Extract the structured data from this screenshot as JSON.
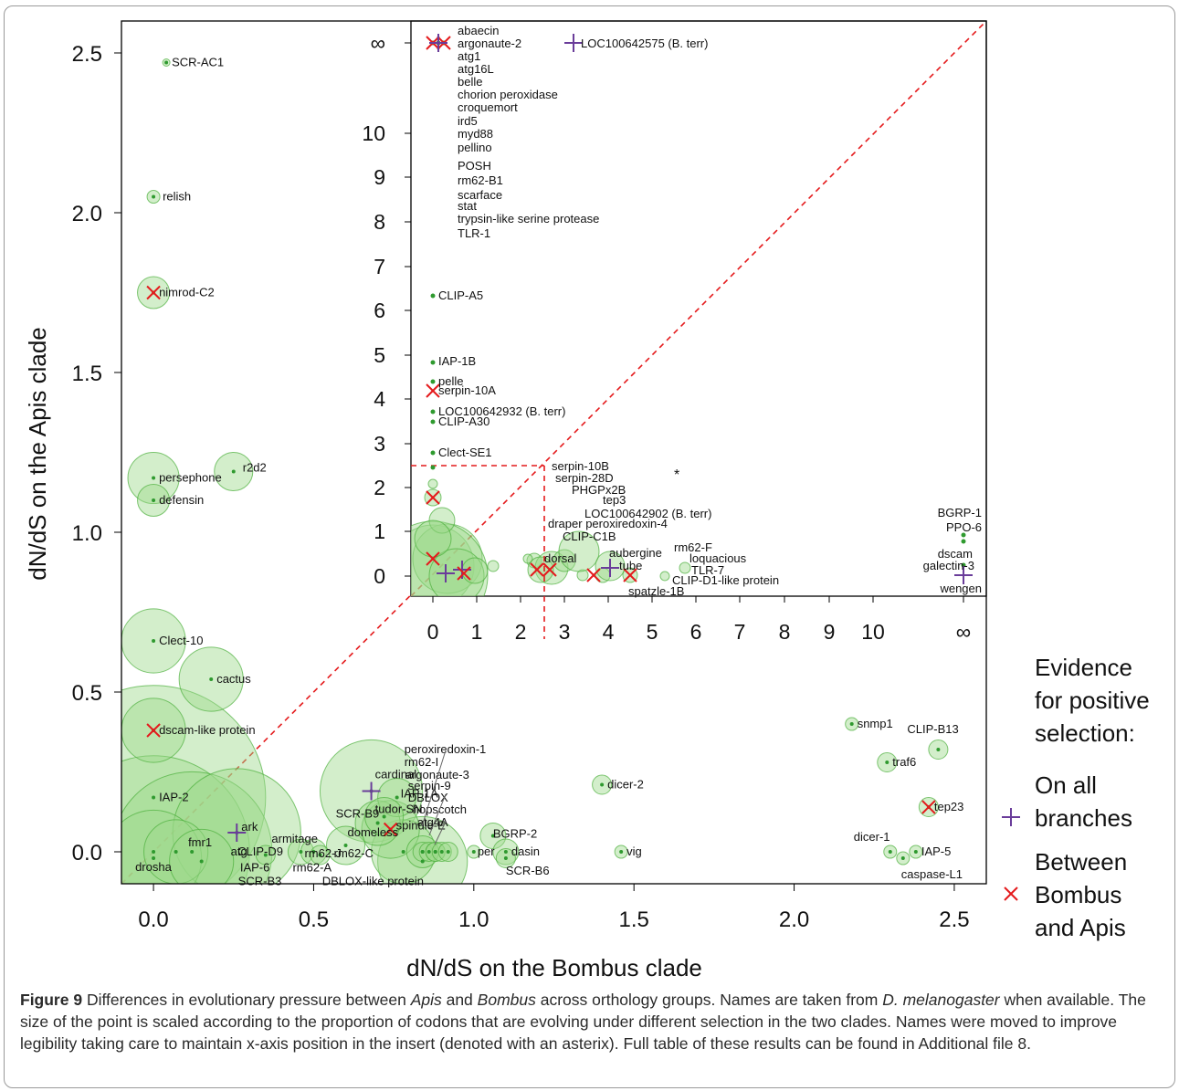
{
  "chart_data": {
    "type": "scatter",
    "xlabel": "dN/dS on the  Bombus clade",
    "ylabel": "dN/dS on the Apis clade",
    "xlim": [
      -0.1,
      2.6
    ],
    "ylim": [
      -0.1,
      2.6
    ],
    "xticks": [
      "0.0",
      "0.5",
      "1.0",
      "1.5",
      "2.0",
      "2.5"
    ],
    "yticks": [
      "0.0",
      "0.5",
      "1.0",
      "1.5",
      "2.0",
      "2.5"
    ],
    "diagonal": "y = x (dashed red)",
    "colors": {
      "circle_fill": "#9ed98c",
      "circle_edge": "#4caf3c",
      "dot": "#2f9a2f",
      "all_branches": "#6a3d9a",
      "between": "#e41a1c"
    },
    "legend": {
      "title": [
        "Evidence",
        "for positive",
        "selection:"
      ],
      "all_branches": [
        "On all",
        "branches"
      ],
      "between": [
        "Between",
        "Bombus",
        "and Apis"
      ]
    },
    "points": [
      {
        "label": "SCR-AC1",
        "x": 0.04,
        "y": 2.47,
        "r": 0.01
      },
      {
        "label": "relish",
        "x": 0.0,
        "y": 2.05,
        "r": 0.02
      },
      {
        "label": "nimrod-C2",
        "x": 0.0,
        "y": 1.75,
        "r": 0.05,
        "marker": "between"
      },
      {
        "label": "persephone",
        "x": 0.0,
        "y": 1.17,
        "r": 0.08
      },
      {
        "label": "r2d2",
        "x": 0.25,
        "y": 1.19,
        "r": 0.06
      },
      {
        "label": "defensin",
        "x": 0.0,
        "y": 1.1,
        "r": 0.05
      },
      {
        "label": "Clect-10",
        "x": 0.0,
        "y": 0.66,
        "r": 0.1
      },
      {
        "label": "cactus",
        "x": 0.18,
        "y": 0.54,
        "r": 0.1
      },
      {
        "label": "dscam-like protein",
        "x": 0.0,
        "y": 0.38,
        "r": 0.1,
        "marker": "between"
      },
      {
        "label": "IAP-2",
        "x": 0.0,
        "y": 0.17,
        "r": 0.35
      },
      {
        "label": "ark",
        "x": 0.26,
        "y": 0.06,
        "r": 0.2,
        "marker": "all_branches"
      },
      {
        "label": "fmr1",
        "x": 0.0,
        "y": 0.0,
        "r": 0.3
      },
      {
        "label": "atg",
        "x": 0.07,
        "y": 0.0,
        "r": 0.1
      },
      {
        "label": "CLIP-D9",
        "x": 0.12,
        "y": 0.0,
        "r": 0.25
      },
      {
        "label": "drosha",
        "x": 0.0,
        "y": -0.02,
        "r": 0.15
      },
      {
        "label": "SCR-B3",
        "x": 0.15,
        "y": -0.03,
        "r": 0.1
      },
      {
        "label": "IAP-6",
        "x": 0.35,
        "y": -0.01,
        "r": 0.03
      },
      {
        "label": "armitage",
        "x": 0.46,
        "y": 0.0,
        "r": 0.04
      },
      {
        "label": "rm62-J",
        "x": 0.5,
        "y": 0.0,
        "r": 0.04
      },
      {
        "label": "rm62-A",
        "x": 0.52,
        "y": -0.01,
        "r": 0.03
      },
      {
        "label": "domeless",
        "x": 0.6,
        "y": 0.02,
        "r": 0.06
      },
      {
        "label": "cardinal",
        "x": 0.68,
        "y": 0.19,
        "r": 0.16,
        "marker": "all_branches"
      },
      {
        "label": "IAP-1A",
        "x": 0.76,
        "y": 0.17,
        "r": 0.06
      },
      {
        "label": "tudor-SN",
        "x": 0.72,
        "y": 0.11,
        "r": 0.06
      },
      {
        "label": "SCR-B9",
        "x": 0.7,
        "y": 0.09,
        "r": 0.07
      },
      {
        "label": "spindle-E",
        "x": 0.74,
        "y": 0.07,
        "r": 0.09,
        "marker": "between"
      },
      {
        "label": "rm62-C",
        "x": 0.78,
        "y": 0.0,
        "r": 0.1
      },
      {
        "label": "DBLOX-like protein",
        "x": 0.84,
        "y": -0.03,
        "r": 0.14
      },
      {
        "label": "peroxiredoxin-1",
        "x": 0.84,
        "y": 0.0,
        "r": 0.05
      },
      {
        "label": "rm62-I",
        "x": 0.84,
        "y": 0.0,
        "r": 0.03
      },
      {
        "label": "argonaute-3",
        "x": 0.86,
        "y": 0.0,
        "r": 0.03
      },
      {
        "label": "serpin-9",
        "x": 0.88,
        "y": 0.0,
        "r": 0.03
      },
      {
        "label": "DBLOX",
        "x": 0.88,
        "y": 0.0,
        "r": 0.03
      },
      {
        "label": "hopscotch",
        "x": 0.9,
        "y": 0.0,
        "r": 0.03
      },
      {
        "label": "atg4A",
        "x": 0.92,
        "y": 0.0,
        "r": 0.03
      },
      {
        "label": "BGRP-2",
        "x": 1.06,
        "y": 0.05,
        "r": 0.04
      },
      {
        "label": "perlecan",
        "x": 1.0,
        "y": 0.0,
        "r": 0.02
      },
      {
        "label": "dasin",
        "x": 1.1,
        "y": 0.0,
        "r": 0.04
      },
      {
        "label": "SCR-B6",
        "x": 1.1,
        "y": -0.02,
        "r": 0.03
      },
      {
        "label": "dicer-2",
        "x": 1.4,
        "y": 0.21,
        "r": 0.03
      },
      {
        "label": "vig",
        "x": 1.46,
        "y": 0.0,
        "r": 0.02
      },
      {
        "label": "snmp1",
        "x": 2.18,
        "y": 0.4,
        "r": 0.02
      },
      {
        "label": "CLIP-B13",
        "x": 2.45,
        "y": 0.32,
        "r": 0.03
      },
      {
        "label": "traf6",
        "x": 2.29,
        "y": 0.28,
        "r": 0.03
      },
      {
        "label": "tep23",
        "x": 2.42,
        "y": 0.14,
        "r": 0.03,
        "marker": "between"
      },
      {
        "label": "dicer-1",
        "x": 2.3,
        "y": 0.0,
        "r": 0.02
      },
      {
        "label": "IAP-5",
        "x": 2.38,
        "y": 0.0,
        "r": 0.02
      },
      {
        "label": "caspase-L1",
        "x": 2.34,
        "y": -0.02,
        "r": 0.02
      }
    ],
    "inset": {
      "xticks": [
        "0",
        "1",
        "2",
        "3",
        "4",
        "5",
        "6",
        "7",
        "8",
        "9",
        "10",
        "∞"
      ],
      "yticks": [
        "0",
        "1",
        "2",
        "3",
        "4",
        "5",
        "6",
        "7",
        "8",
        "9",
        "10",
        "∞"
      ],
      "infinity_labels": [
        "abaecin",
        "argonaute-2",
        "atg1",
        "atg16L",
        "belle",
        "chorion peroxidase",
        "croquemort",
        "ird5",
        "myd88",
        "pellino",
        "POSH",
        "rm62-B1",
        "scarface",
        "stat",
        "trypsin-like serine protease",
        "TLR-1"
      ],
      "infinity_right_label": "LOC100642575 (B. terr)",
      "left_labels": [
        {
          "label": "CLIP-A5",
          "y": 6.3
        },
        {
          "label": "IAP-1B",
          "y": 4.9
        },
        {
          "label": "pelle",
          "y": 4.3
        },
        {
          "label": "serpin-10A",
          "y": 4.2,
          "marker": "between"
        },
        {
          "label": "LOC100642932 (B. terr)",
          "y": 3.7
        },
        {
          "label": "CLIP-A30",
          "y": 3.5
        },
        {
          "label": "Clect-SE1",
          "y": 2.7
        }
      ],
      "asterisk_labels": [
        "serpin-10B",
        "serpin-28D",
        "PHGPx2B",
        "tep3",
        "LOC100642902 (B. terr)",
        "draper  peroxiredoxin-4",
        "CLIP-C1B"
      ],
      "right_labels": [
        "BGRP-1",
        "PPO-6",
        "dscam",
        "galectin-3",
        "wengen"
      ],
      "bottom_labels": [
        "dorsal",
        "aubergine",
        "tube",
        "rm62-F",
        "loquacious",
        "TLR-7",
        "CLIP-D1-like protein",
        "spatzle-1B"
      ]
    }
  },
  "caption": {
    "figure": "Figure 9",
    "text_1": " Differences in evolutionary pressure between ",
    "apis": "Apis",
    "text_2": " and ",
    "bombus": "Bombus",
    "text_3": " across orthology groups. Names are taken from ",
    "dmel": "D. melanogaster",
    "text_4": " when available. The size of the point is scaled according to the proportion of codons that are evolving under different selection in the two clades. Names were moved to improve legibility taking care to maintain x-axis position in the insert (denoted with an asterix). Full table of these results can be found in Additional file 8."
  }
}
